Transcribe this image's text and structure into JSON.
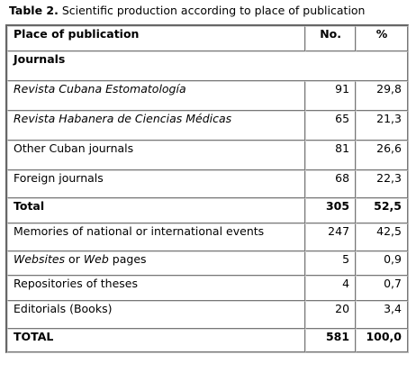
{
  "caption": {
    "label": "Table 2.",
    "text": " Scientific production according to place of publication"
  },
  "table": {
    "headers": {
      "place": "Place  of publication",
      "no": "No.",
      "pct": "%"
    },
    "section": "Journals",
    "rows": [
      {
        "place_em": "Revista Cubana Estomatología",
        "place_rest": "",
        "no": "91",
        "pct": "29,8"
      },
      {
        "place_em": "Revista Habanera de Ciencias Médicas",
        "place_rest": "",
        "no": "65",
        "pct": "21,3"
      },
      {
        "place_em": "",
        "place_rest": "Other Cuban journals",
        "no": "81",
        "pct": "26,6"
      },
      {
        "place_em": "",
        "place_rest": "Foreign journals",
        "no": "68",
        "pct": "22,3"
      },
      {
        "place_em": "",
        "place_rest": "Total",
        "no": "305",
        "pct": "52,5"
      },
      {
        "place_em": "",
        "place_rest": "Memories of national or international events",
        "no": "247",
        "pct": "42,5"
      },
      {
        "place_em": "Websites",
        "place_mid": " or ",
        "place_em2": "Web",
        "place_rest": " pages",
        "no": "5",
        "pct": "0,9"
      },
      {
        "place_em": "",
        "place_rest": "Repositories of theses",
        "no": "4",
        "pct": "0,7"
      },
      {
        "place_em": "",
        "place_rest": "Editorials (Books)",
        "no": "20",
        "pct": "3,4"
      },
      {
        "place_em": "",
        "place_rest": "TOTAL",
        "no": "581",
        "pct": "100,0"
      }
    ]
  }
}
